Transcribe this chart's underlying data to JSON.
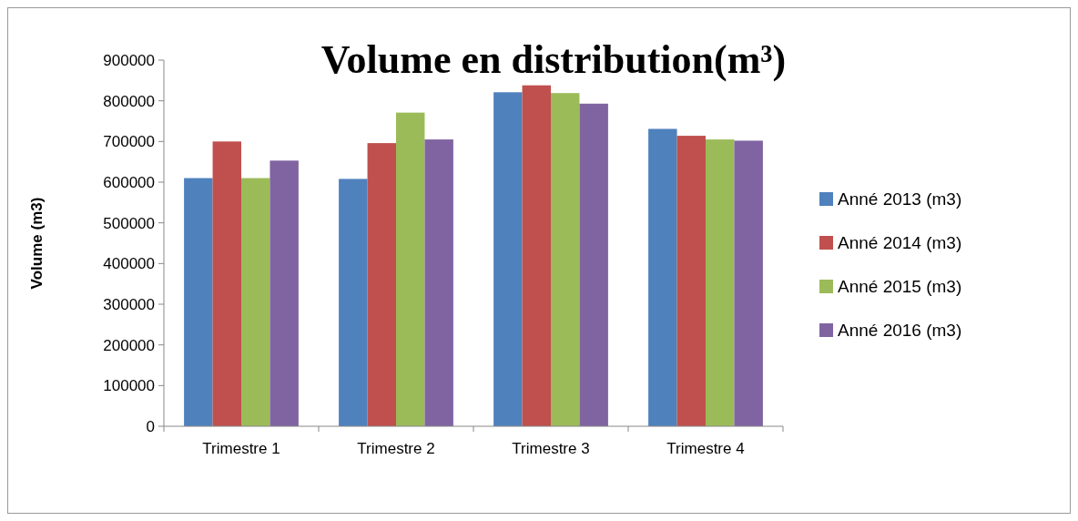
{
  "chart_data": {
    "type": "bar",
    "title": "Volume en distribution(m³)",
    "ylabel": "Volume (m3)",
    "categories": [
      "Trimestre 1",
      "Trimestre 2",
      "Trimestre 3",
      "Trimestre 4"
    ],
    "series": [
      {
        "name": "Anné 2013 (m3)",
        "color": "#4f81bd",
        "values": [
          610000,
          608000,
          821000,
          731000
        ]
      },
      {
        "name": "Anné 2014 (m3)",
        "color": "#c0504d",
        "values": [
          700000,
          696000,
          838000,
          714000
        ]
      },
      {
        "name": "Anné 2015 (m3)",
        "color": "#9bbb59",
        "values": [
          610000,
          771000,
          819000,
          705000
        ]
      },
      {
        "name": "Anné 2016 (m3)",
        "color": "#8064a2",
        "values": [
          653000,
          705000,
          793000,
          702000
        ]
      }
    ],
    "ylim": [
      0,
      900000
    ],
    "yticks": [
      0,
      100000,
      200000,
      300000,
      400000,
      500000,
      600000,
      700000,
      800000,
      900000
    ],
    "grid": false,
    "legend": "right"
  }
}
